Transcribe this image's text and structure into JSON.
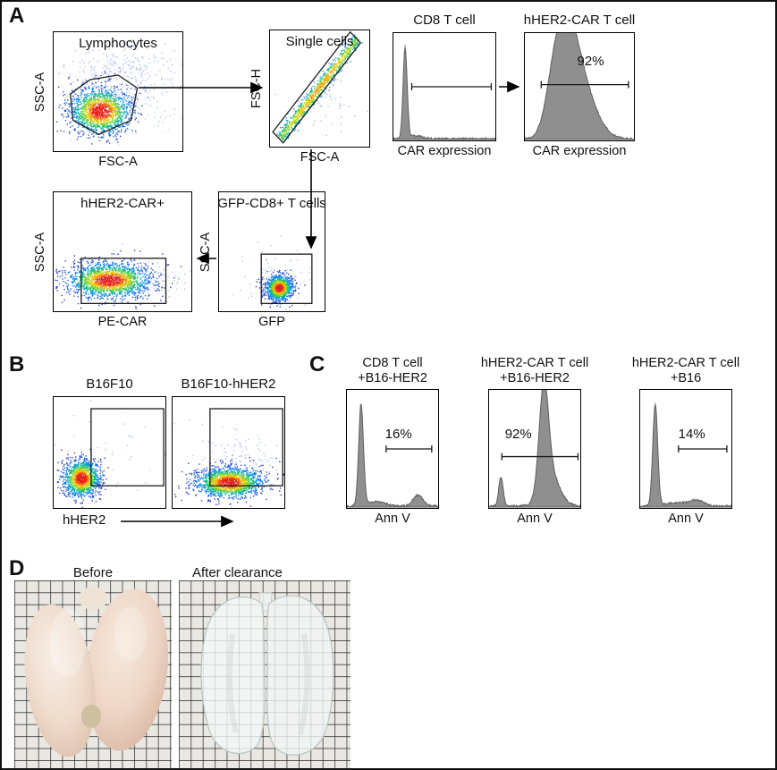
{
  "panels": {
    "A": {
      "label": "A"
    },
    "B": {
      "label": "B",
      "xaxis_label": "hHER2"
    },
    "C": {
      "label": "C"
    },
    "D": {
      "label": "D",
      "photos": [
        {
          "label": "Before"
        },
        {
          "label": "After clearance"
        }
      ]
    }
  },
  "colors": {
    "histogram_fill": "#8f8f8f",
    "histogram_edge": "#5f5f5f",
    "gate_color": "#1a1a1a",
    "arrow_color": "#000000",
    "scatter_outlier_color": "#4a6fd4"
  },
  "chart_data": [
    {
      "id": "lymphocytes-gate",
      "type": "scatter",
      "title": "Lymphocytes",
      "xlabel": "FSC-A",
      "ylabel": "SSC-A",
      "clusters": [
        {
          "kind": "gauss",
          "cx": 0.36,
          "cy": 0.66,
          "sx": 0.125,
          "sy": 0.1,
          "n": 1500,
          "color": "jet"
        },
        {
          "kind": "gauss",
          "cx": 0.52,
          "cy": 0.4,
          "sx": 0.21,
          "sy": 0.16,
          "n": 380,
          "color": "#4a6fd4",
          "alpha": 0.4
        },
        {
          "kind": "gauss",
          "cx": 0.45,
          "cy": 0.55,
          "sx": 0.3,
          "sy": 0.25,
          "n": 120,
          "color": "#6f86d8",
          "alpha": 0.3
        }
      ],
      "gates": [
        {
          "shape": "polygon",
          "points": [
            [
              0.13,
              0.52
            ],
            [
              0.28,
              0.4
            ],
            [
              0.5,
              0.36
            ],
            [
              0.65,
              0.47
            ],
            [
              0.6,
              0.74
            ],
            [
              0.35,
              0.86
            ],
            [
              0.15,
              0.74
            ]
          ]
        }
      ]
    },
    {
      "id": "single-cells-gate",
      "type": "scatter",
      "title": "Single cells",
      "xlabel": "FSC-A",
      "ylabel": "FSC-H",
      "clusters": [
        {
          "kind": "line",
          "line": [
            0.1,
            0.92,
            0.88,
            0.06
          ],
          "perp": 0.028,
          "n": 1000
        },
        {
          "kind": "gauss",
          "cx": 0.6,
          "cy": 0.62,
          "sx": 0.16,
          "sy": 0.12,
          "n": 45,
          "color": "#4a6fd4",
          "alpha": 0.45
        }
      ],
      "gates": [
        {
          "shape": "polygon",
          "points": [
            [
              0.028,
              0.873
            ],
            [
              0.808,
              0.013
            ],
            [
              0.912,
              0.107
            ],
            [
              0.132,
              0.967
            ]
          ]
        }
      ]
    },
    {
      "id": "cd8-car-expression",
      "type": "histogram",
      "title": "CD8 T cell",
      "xlabel": "CAR expression",
      "peaks": [
        {
          "c": 0.115,
          "s": 0.02,
          "h": 0.92
        },
        {
          "c": 0.22,
          "s": 0.06,
          "h": 0.03
        }
      ],
      "gates": [
        {
          "shape": "hline",
          "y": 0.5,
          "x1": 0.18,
          "x2": 0.96
        }
      ]
    },
    {
      "id": "her2-car-expression",
      "type": "histogram",
      "title": "hHER2-CAR T cell",
      "xlabel": "CAR expression",
      "percent": "92%",
      "peaks": [
        {
          "c": 0.38,
          "s": 0.1,
          "h": 0.88
        },
        {
          "c": 0.52,
          "s": 0.13,
          "h": 0.5
        },
        {
          "c": 0.27,
          "s": 0.08,
          "h": 0.4
        }
      ],
      "gates": [
        {
          "shape": "hline",
          "y": 0.48,
          "x1": 0.15,
          "x2": 0.95
        }
      ]
    },
    {
      "id": "her2-car-positive",
      "type": "scatter",
      "title": "hHER2-CAR+",
      "xlabel": "PE-CAR",
      "ylabel": "SSC-A",
      "clusters": [
        {
          "kind": "gauss",
          "cx": 0.4,
          "cy": 0.735,
          "sx": 0.155,
          "sy": 0.075,
          "n": 1700,
          "color": "jet"
        },
        {
          "kind": "gauss",
          "cx": 0.6,
          "cy": 0.72,
          "sx": 0.2,
          "sy": 0.1,
          "n": 160,
          "color": "#4a6fd4",
          "alpha": 0.4
        }
      ],
      "gates": [
        {
          "shape": "rect",
          "x1": 0.2,
          "y1": 0.555,
          "x2": 0.815,
          "y2": 0.935
        }
      ]
    },
    {
      "id": "gfp-cd8-t-cells",
      "type": "scatter",
      "title": "GFP-CD8+ T cells",
      "xlabel": "GFP",
      "ylabel": "SSC-A",
      "clusters": [
        {
          "kind": "gauss",
          "cx": 0.565,
          "cy": 0.8,
          "sx": 0.065,
          "sy": 0.055,
          "n": 1000,
          "color": "jet"
        },
        {
          "kind": "gauss",
          "cx": 0.52,
          "cy": 0.7,
          "sx": 0.15,
          "sy": 0.13,
          "n": 80,
          "color": "#4a6fd4",
          "alpha": 0.4
        }
      ],
      "gates": [
        {
          "shape": "rect",
          "x1": 0.4,
          "y1": 0.52,
          "x2": 0.88,
          "y2": 0.935
        }
      ]
    },
    {
      "id": "b16f10",
      "type": "scatter",
      "title": "B16F10",
      "clusters": [
        {
          "kind": "gauss",
          "cx": 0.245,
          "cy": 0.73,
          "sx": 0.085,
          "sy": 0.085,
          "n": 1200,
          "color": "jet"
        },
        {
          "kind": "gauss",
          "cx": 0.45,
          "cy": 0.5,
          "sx": 0.26,
          "sy": 0.24,
          "n": 40,
          "color": "#4a6fd4",
          "alpha": 0.4
        }
      ],
      "gates": [
        {
          "shape": "rect",
          "x1": 0.335,
          "y1": 0.105,
          "x2": 0.985,
          "y2": 0.8
        }
      ]
    },
    {
      "id": "b16f10-hher2",
      "type": "scatter",
      "title": "B16F10-hHER2",
      "clusters": [
        {
          "kind": "gauss",
          "cx": 0.5,
          "cy": 0.765,
          "sx": 0.155,
          "sy": 0.07,
          "n": 1500,
          "color": "jet"
        },
        {
          "kind": "gauss",
          "cx": 0.55,
          "cy": 0.55,
          "sx": 0.2,
          "sy": 0.16,
          "n": 130,
          "color": "#4a6fd4",
          "alpha": 0.4
        }
      ],
      "gates": [
        {
          "shape": "rect",
          "x1": 0.335,
          "y1": 0.105,
          "x2": 0.985,
          "y2": 0.8
        }
      ]
    },
    {
      "id": "annv-cd8-b16her2",
      "type": "histogram",
      "title_line1": "CD8 T cell",
      "title_line2": "+B16-HER2",
      "xlabel": "Ann V",
      "percent": "16%",
      "peaks": [
        {
          "c": 0.155,
          "s": 0.026,
          "h": 0.93
        },
        {
          "c": 0.32,
          "s": 0.1,
          "h": 0.04
        },
        {
          "c": 0.78,
          "s": 0.055,
          "h": 0.1
        }
      ],
      "gates": [
        {
          "shape": "hline",
          "y": 0.5,
          "x1": 0.43,
          "x2": 0.93
        }
      ]
    },
    {
      "id": "annv-car-b16her2",
      "type": "histogram",
      "title_line1": "hHER2-CAR T cell",
      "title_line2": "+B16-HER2",
      "xlabel": "Ann V",
      "percent": "92%",
      "peaks": [
        {
          "c": 0.13,
          "s": 0.024,
          "h": 0.27
        },
        {
          "c": 0.6,
          "s": 0.05,
          "h": 0.93
        },
        {
          "c": 0.67,
          "s": 0.1,
          "h": 0.3
        }
      ],
      "gates": [
        {
          "shape": "hline",
          "y": 0.565,
          "x1": 0.14,
          "x2": 0.975
        }
      ]
    },
    {
      "id": "annv-car-b16",
      "type": "histogram",
      "title_line1": "hHER2-CAR T cell",
      "title_line2": "+B16",
      "xlabel": "Ann V",
      "percent": "14%",
      "peaks": [
        {
          "c": 0.165,
          "s": 0.027,
          "h": 0.93
        },
        {
          "c": 0.4,
          "s": 0.12,
          "h": 0.03
        },
        {
          "c": 0.62,
          "s": 0.08,
          "h": 0.05
        }
      ],
      "gates": [
        {
          "shape": "hline",
          "y": 0.5,
          "x1": 0.42,
          "x2": 0.95
        }
      ]
    }
  ]
}
